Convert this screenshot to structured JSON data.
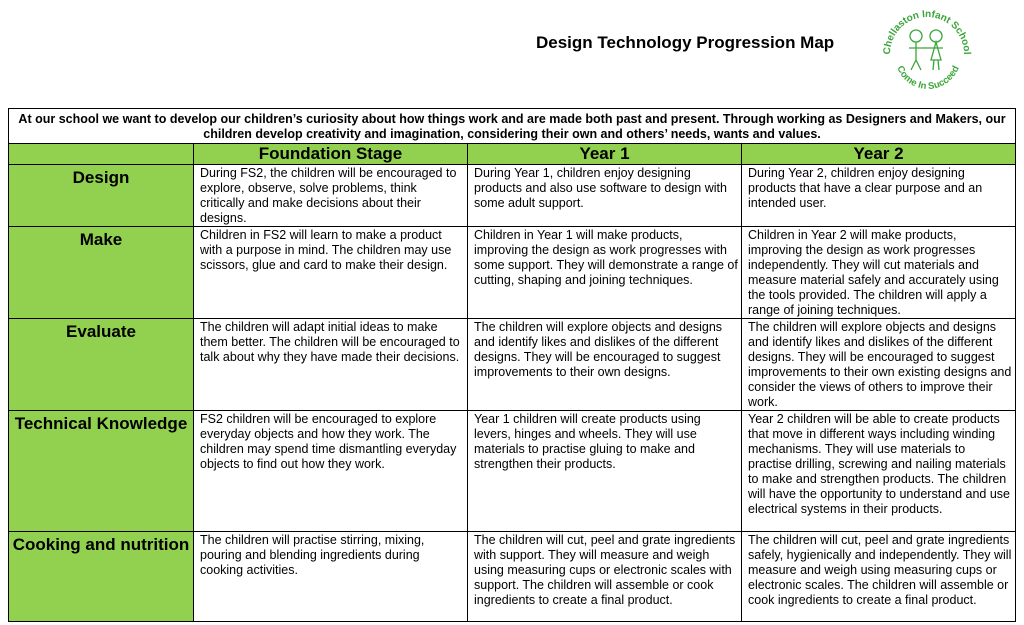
{
  "header": {
    "title": "Design Technology Progression Map",
    "logo_top_text": "Chellaston Infant School",
    "logo_bottom_text": "Come In Succeed"
  },
  "intro": "At our school we want to develop our children’s curiosity about how things work and are made both past and present.  Through working as Designers and Makers, our children develop creativity and imagination, considering their own and others’ needs, wants and values.",
  "columns": [
    "Foundation Stage",
    "Year 1",
    "Year 2"
  ],
  "rows": [
    {
      "label": "Design",
      "cells": [
        "During FS2, the children will be encouraged to explore, observe, solve problems, think critically and make decisions about their designs.",
        "During Year 1, children enjoy designing products and also use software to design with some adult support.",
        "During Year 2, children enjoy designing products that have a clear purpose and an intended user."
      ]
    },
    {
      "label": "Make",
      "cells": [
        "Children in FS2 will learn to make a product with a purpose in mind.  The children may use scissors, glue and card to make their design.",
        "Children in Year 1 will make products, improving the design as work progresses with some support.  They will demonstrate a range of cutting, shaping and joining techniques.",
        "Children in Year 2 will make products, improving the design as work progresses independently.  They will cut materials and measure material safely and accurately using the tools provided.  The children will apply a range of joining techniques."
      ]
    },
    {
      "label": "Evaluate",
      "cells": [
        "The children will adapt initial ideas to make them better.  The children will be encouraged to talk about why they have made their decisions.",
        "The children will explore objects and designs and identify likes and dislikes of the different designs.  They will be encouraged to suggest improvements to their own designs.",
        "The children will explore objects and designs and identify likes and dislikes of the different designs.  They will be encouraged to suggest improvements to their own existing designs and consider the views of others to improve their work."
      ]
    },
    {
      "label": "Technical Knowledge",
      "cells": [
        "FS2 children will be encouraged to explore everyday objects and how they work.  The children may spend time dismantling everyday objects to find out how they work.",
        "Year 1 children will create products using levers, hinges and wheels.  They will use materials to practise gluing to make and strengthen their products.",
        "Year 2 children will be able to create products that move in different ways including winding mechanisms.  They will use materials to practise drilling, screwing and nailing materials to make and strengthen products.  The children will have the opportunity to understand and use electrical systems in their products."
      ]
    },
    {
      "label": "Cooking and nutrition",
      "cells": [
        "The children will practise stirring, mixing, pouring and blending ingredients during cooking activities.",
        "The children will cut, peel and grate ingredients with support.  They will measure and weigh using measuring cups or electronic scales with support.  The children will assemble or cook ingredients to create a final product.",
        "The children will cut, peel and grate ingredients safely, hygienically and independently.  They will measure and weigh using measuring cups or electronic scales.  The children will assemble or cook ingredients to create a final product."
      ]
    }
  ],
  "colors": {
    "accent_green": "#92d050",
    "logo_green": "#3aa63a"
  }
}
